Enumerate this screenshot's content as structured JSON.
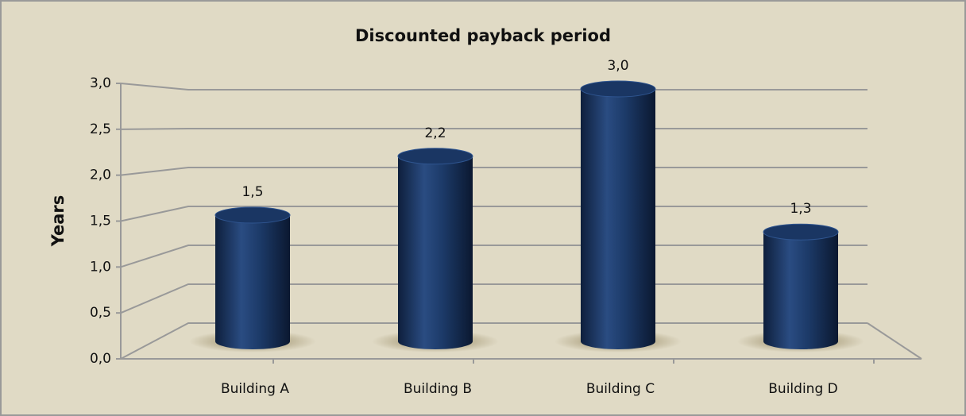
{
  "chart_data": {
    "type": "bar",
    "title": "Discounted payback period",
    "y_label": "Years",
    "categories": [
      "Building A",
      "Building B",
      "Building C",
      "Building D"
    ],
    "values": [
      1.5,
      2.2,
      3.0,
      1.3
    ],
    "value_labels": [
      "1,5",
      "2,2",
      "3,0",
      "1,3"
    ],
    "color": "#1c3a68",
    "ylim": [
      0,
      3
    ],
    "yticks": [
      {
        "value": 0,
        "label": "0,0"
      },
      {
        "value": 0.5,
        "label": "0,5"
      },
      {
        "value": 1,
        "label": "1,0"
      },
      {
        "value": 1.5,
        "label": "1,5"
      },
      {
        "value": 2,
        "label": "2,0"
      },
      {
        "value": 2.5,
        "label": "2,5"
      },
      {
        "value": 3,
        "label": "3,0"
      }
    ],
    "grid": true
  }
}
